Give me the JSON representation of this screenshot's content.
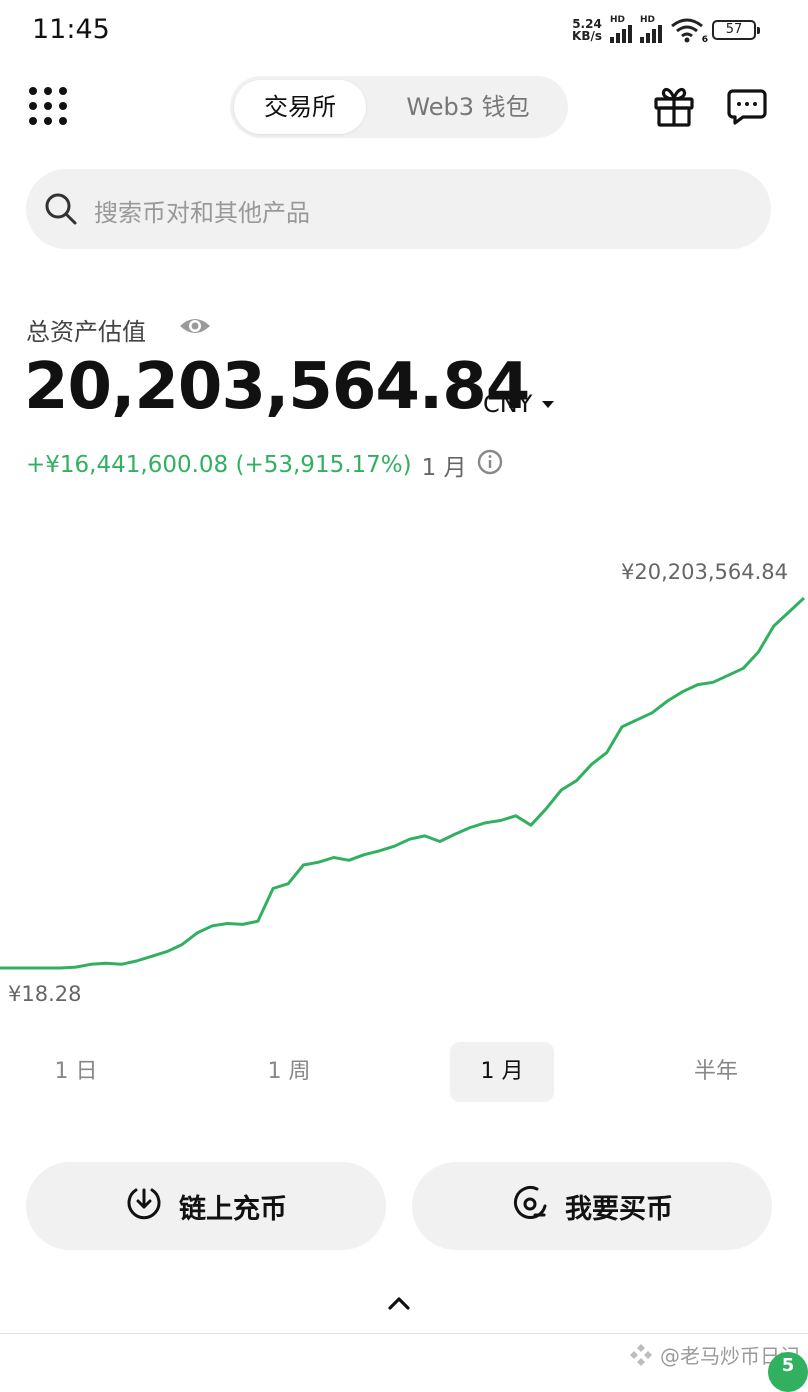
{
  "status_bar": {
    "time": "11:45",
    "net_speed_value": "5.24",
    "net_speed_unit": "KB/s",
    "signal_label": "HD",
    "wifi_sub": "6",
    "battery": "57"
  },
  "header": {
    "tabs": [
      {
        "label": "交易所",
        "active": true
      },
      {
        "label": "Web3 钱包",
        "active": false
      }
    ]
  },
  "search": {
    "placeholder": "搜索币对和其他产品"
  },
  "assets": {
    "label": "总资产估值",
    "value": "20,203,564.84",
    "currency": "CNY",
    "pnl": "+¥16,441,600.08 (+53,915.17%)",
    "pnl_period": "1 月"
  },
  "chart_data": {
    "type": "line",
    "color": "#31b060",
    "max_label": "¥20,203,564.84",
    "min_label": "¥18.28",
    "series_shape": [
      0,
      0,
      0,
      0,
      0,
      0.2,
      0.8,
      1,
      0.8,
      1.5,
      2.5,
      3.5,
      5,
      7.5,
      9,
      9.5,
      9.3,
      10,
      17,
      18,
      22,
      22.6,
      23.6,
      23,
      24.2,
      25,
      26,
      27.5,
      28.2,
      27,
      28.6,
      30,
      31,
      31.5,
      32.5,
      30.5,
      34,
      38,
      40,
      43.5,
      46,
      51.5,
      53,
      54.5,
      57,
      59,
      60.5,
      61,
      62.5,
      64,
      67.5,
      73,
      76,
      79
    ]
  },
  "periods": [
    {
      "label": "1 日",
      "active": false
    },
    {
      "label": "1 周",
      "active": false
    },
    {
      "label": "1 月",
      "active": true
    },
    {
      "label": "半年",
      "active": false
    }
  ],
  "actions": {
    "deposit": "链上充币",
    "buy": "我要买币"
  },
  "watermark": "@老马炒币日记",
  "badge": "5"
}
